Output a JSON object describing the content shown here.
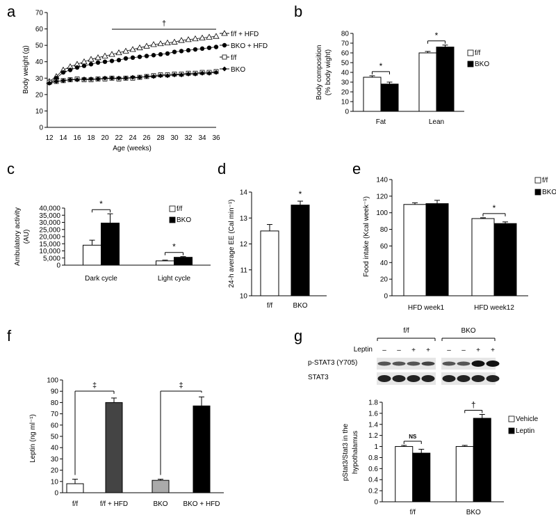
{
  "panel_labels": [
    "a",
    "b",
    "c",
    "d",
    "e",
    "f",
    "g"
  ],
  "chart_data": [
    {
      "panel": "a",
      "type": "line",
      "xlabel": "Age (weeks)",
      "ylabel": "Body weight (g)",
      "xlim": [
        12,
        36
      ],
      "ylim": [
        0,
        70
      ],
      "x_ticks": [
        12,
        14,
        16,
        18,
        20,
        22,
        24,
        26,
        28,
        30,
        32,
        34,
        36
      ],
      "y_ticks": [
        0,
        10,
        20,
        30,
        40,
        50,
        60,
        70
      ],
      "significance": {
        "symbol": "†",
        "from_x": 21,
        "to_x": 36
      },
      "x": [
        12,
        13,
        14,
        15,
        16,
        17,
        18,
        19,
        20,
        21,
        22,
        23,
        24,
        25,
        26,
        27,
        28,
        29,
        30,
        31,
        32,
        33,
        34,
        35,
        36
      ],
      "series": [
        {
          "name": "f/f + HFD",
          "marker": "open-triangle",
          "values": [
            28,
            31,
            35,
            37,
            38.5,
            40,
            41.5,
            42.5,
            43.5,
            44.5,
            45.5,
            46.5,
            47.5,
            48.5,
            49.5,
            50.5,
            51,
            51.5,
            52,
            53,
            53.5,
            54,
            54.5,
            55,
            55.5
          ]
        },
        {
          "name": "BKO + HFD",
          "marker": "filled-circle",
          "values": [
            27,
            30,
            33.5,
            35,
            36.5,
            37.5,
            38.5,
            39.5,
            40,
            40.5,
            41,
            42,
            42.5,
            43,
            43.5,
            44,
            44.5,
            45,
            46,
            46.5,
            47,
            47.5,
            48,
            48.5,
            49
          ]
        },
        {
          "name": "f/f",
          "marker": "open-square",
          "values": [
            27.5,
            28,
            28.5,
            29,
            29.5,
            29,
            29,
            29.5,
            29.5,
            30,
            29.5,
            30,
            30,
            30.5,
            31,
            31.5,
            32,
            32,
            32.5,
            32.5,
            33,
            33,
            33.5,
            33.5,
            34
          ]
        },
        {
          "name": "BKO",
          "marker": "filled-diamond",
          "values": [
            27,
            28,
            28.5,
            29,
            29,
            29.5,
            29.5,
            29.5,
            30,
            30,
            30,
            30,
            30.5,
            30.5,
            31,
            31,
            31.5,
            31.5,
            32,
            32,
            32.5,
            32.5,
            33,
            33,
            33.5
          ]
        }
      ]
    },
    {
      "panel": "b",
      "type": "bar",
      "ylabel": "Body composition (% body wight)",
      "ylim": [
        0,
        80
      ],
      "y_ticks": [
        0,
        10,
        20,
        30,
        40,
        50,
        60,
        70,
        80
      ],
      "categories": [
        "Fat",
        "Lean"
      ],
      "series": [
        {
          "name": "f/f",
          "color": "#ffffff",
          "values": [
            35,
            60
          ],
          "errors": [
            1.5,
            1.5
          ]
        },
        {
          "name": "BKO",
          "color": "#000000",
          "values": [
            28,
            66
          ],
          "errors": [
            2,
            2
          ]
        }
      ],
      "significance": [
        "*",
        "*"
      ]
    },
    {
      "panel": "c",
      "type": "bar",
      "ylabel": "Ambulatory activity (AU)",
      "ylim": [
        0,
        40000
      ],
      "y_ticks": [
        "0",
        "5,000",
        "10,000",
        "15,000",
        "20,000",
        "25,000",
        "30,000",
        "35,000",
        "40,000"
      ],
      "categories": [
        "Dark cycle",
        "Light cycle"
      ],
      "series": [
        {
          "name": "f/f",
          "color": "#ffffff",
          "values": [
            14000,
            3000
          ],
          "errors": [
            3500,
            500
          ]
        },
        {
          "name": "BKO",
          "color": "#000000",
          "values": [
            29500,
            5500
          ],
          "errors": [
            6500,
            500
          ]
        }
      ],
      "significance": [
        "*",
        "*"
      ]
    },
    {
      "panel": "d",
      "type": "bar",
      "ylabel": "24-h average EE (Cal min⁻¹)",
      "ylim": [
        10,
        14
      ],
      "y_ticks": [
        10,
        11,
        12,
        13,
        14
      ],
      "categories": [
        "f/f",
        "BKO"
      ],
      "colors": [
        "#ffffff",
        "#000000"
      ],
      "values": [
        12.5,
        13.5
      ],
      "errors": [
        0.25,
        0.15
      ],
      "significance": "*"
    },
    {
      "panel": "e",
      "type": "bar",
      "ylabel": "Food intake (Kcal week⁻¹)",
      "ylim": [
        0,
        140
      ],
      "y_ticks": [
        0,
        20,
        40,
        60,
        80,
        100,
        120,
        140
      ],
      "categories": [
        "HFD week1",
        "HFD week12"
      ],
      "series": [
        {
          "name": "f/f",
          "color": "#ffffff",
          "values": [
            110,
            93
          ],
          "errors": [
            2,
            1
          ]
        },
        {
          "name": "BKO",
          "color": "#000000",
          "values": [
            111,
            87
          ],
          "errors": [
            4,
            2
          ]
        }
      ],
      "significance": [
        "",
        "*"
      ]
    },
    {
      "panel": "f",
      "type": "bar",
      "ylabel": "Leptin (ng ml⁻¹)",
      "ylim": [
        0,
        100
      ],
      "y_ticks": [
        0,
        10,
        20,
        30,
        40,
        50,
        60,
        70,
        80,
        90,
        100
      ],
      "categories": [
        "f/f",
        "f/f + HFD",
        "BKO",
        "BKO + HFD"
      ],
      "colors": [
        "#ffffff",
        "#444444",
        "#aaaaaa",
        "#000000"
      ],
      "values": [
        8,
        80,
        11,
        77
      ],
      "errors": [
        4,
        4,
        1,
        8
      ],
      "significance": [
        {
          "symbol": "‡",
          "between": [
            0,
            1
          ]
        },
        {
          "symbol": "‡",
          "between": [
            2,
            3
          ]
        }
      ]
    },
    {
      "panel": "g",
      "type": "bar",
      "ylabel": "pStat3/Stat3 in the hypothalamus",
      "ylim": [
        0,
        1.8
      ],
      "y_ticks": [
        "0",
        "0.2",
        "0.4",
        "0.6",
        "0.8",
        "1",
        "1.2",
        "1.4",
        "1.6",
        "1.8"
      ],
      "categories": [
        "f/f",
        "BKO"
      ],
      "series": [
        {
          "name": "Vehicle",
          "color": "#ffffff",
          "values": [
            1.0,
            1.0
          ],
          "errors": [
            0.02,
            0.02
          ]
        },
        {
          "name": "Leptin",
          "color": "#000000",
          "values": [
            0.88,
            1.51
          ],
          "errors": [
            0.07,
            0.07
          ]
        }
      ],
      "significance": [
        "NS",
        "†"
      ]
    }
  ],
  "blot": {
    "group_labels": [
      "f/f",
      "BKO"
    ],
    "row_label": "Leptin",
    "treatment_signs": [
      "–",
      "–",
      "+",
      "+",
      "–",
      "–",
      "+",
      "+"
    ],
    "band_labels": [
      "p-STAT3 (Y705)",
      "STAT3"
    ]
  }
}
